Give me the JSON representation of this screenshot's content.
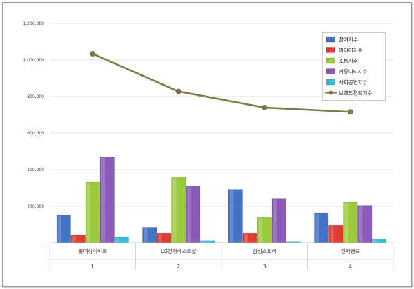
{
  "chart_data": {
    "type": "bar+line",
    "categories": [
      "롯데하이마트",
      "LG전자베스트샵",
      "삼성스토어",
      "전자랜드"
    ],
    "category_numbers": [
      "1",
      "2",
      "3",
      "4"
    ],
    "series": [
      {
        "name": "참여지수",
        "type": "bar",
        "color": "#4472C4",
        "values": [
          152000,
          85000,
          292000,
          162000
        ]
      },
      {
        "name": "미디어지수",
        "type": "bar",
        "color": "#E03C31",
        "values": [
          42000,
          52000,
          52000,
          97000
        ]
      },
      {
        "name": "소통지수",
        "type": "bar",
        "color": "#9BCB3C",
        "values": [
          332000,
          360000,
          140000,
          222000
        ]
      },
      {
        "name": "커뮤니티지수",
        "type": "bar",
        "color": "#8A5BB8",
        "values": [
          470000,
          310000,
          243000,
          205000
        ]
      },
      {
        "name": "사회공헌지수",
        "type": "bar",
        "color": "#33BFD8",
        "values": [
          30000,
          12000,
          5000,
          22000
        ]
      },
      {
        "name": "브랜드평판지수",
        "type": "line",
        "color": "#7F7A45",
        "values": [
          1034000,
          828000,
          740000,
          716000
        ]
      }
    ],
    "ylim": [
      0,
      1200000
    ],
    "yticks": [
      "-",
      "200,000",
      "400,000",
      "600,000",
      "800,000",
      "1,000,000",
      "1,200,000"
    ],
    "legend_position": "top-right",
    "grid": true
  }
}
